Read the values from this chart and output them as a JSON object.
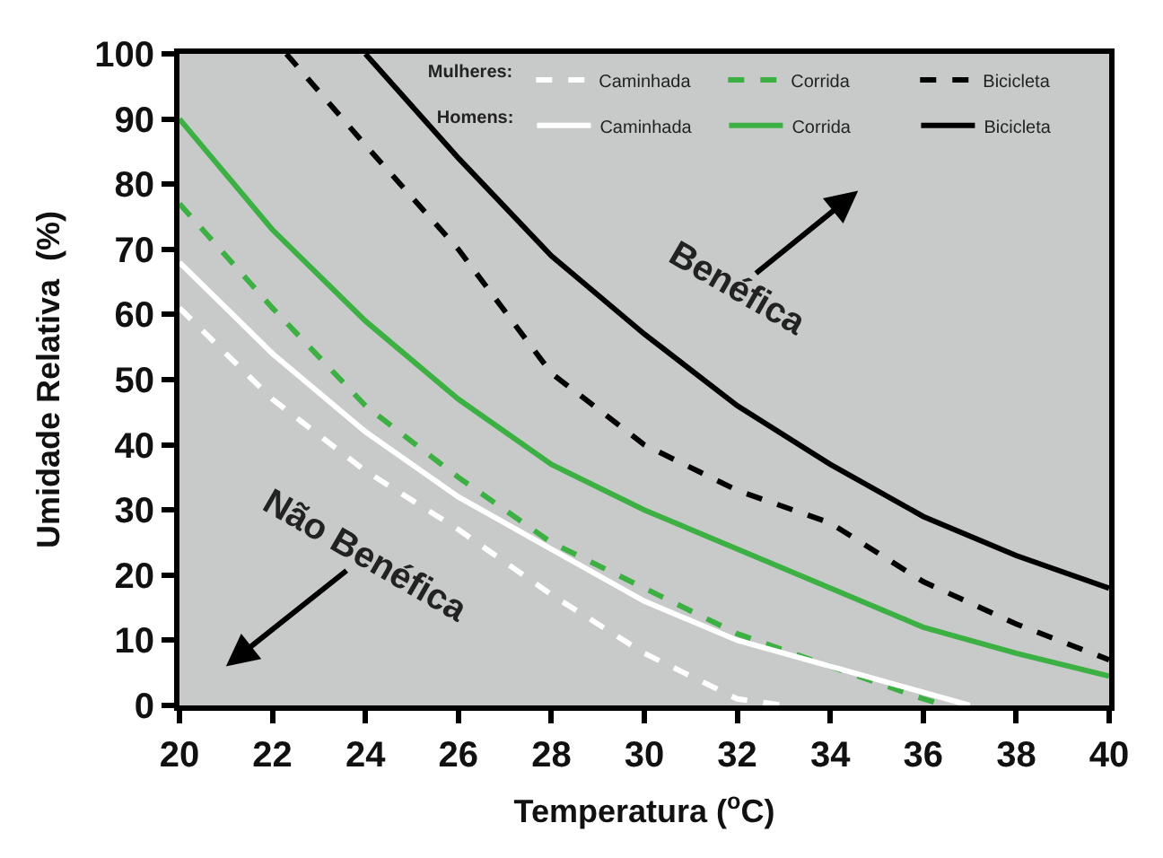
{
  "chart_data": {
    "type": "line",
    "xlabel": "Temperatura ($^{o}$C)",
    "ylabel": "Umidade Relativa  (%)",
    "xlim": [
      20,
      40
    ],
    "xticks": [
      20,
      22,
      24,
      26,
      28,
      30,
      32,
      34,
      36,
      38,
      40
    ],
    "ylim": [
      0,
      100
    ],
    "yticks": [
      0,
      10,
      20,
      30,
      40,
      50,
      60,
      70,
      80,
      90,
      100
    ],
    "grid": false,
    "legend": "top right",
    "marker": "none",
    "annotations": [
      "Mulheres:",
      "Homens:",
      "Benéfica",
      "Não Benéfica"
    ],
    "series": [
      {
        "name": "Caminhada",
        "color": "#ffffff",
        "line_style": "dashed",
        "x": [
          20,
          22,
          24,
          26,
          28,
          30,
          32,
          33
        ],
        "values": [
          61,
          47,
          36,
          27,
          17,
          8,
          1,
          0
        ]
      },
      {
        "name": "Corrida",
        "color": "#3cb043",
        "line_style": "dashed",
        "x": [
          20,
          22,
          24,
          26,
          28,
          30,
          32,
          34,
          36,
          36.5
        ],
        "values": [
          77,
          61,
          46,
          35,
          25,
          18,
          11,
          6,
          1,
          0
        ]
      },
      {
        "name": "Bicicleta",
        "color": "#000000",
        "line_style": "dashed",
        "x": [
          22.3,
          24,
          26,
          28,
          30,
          32,
          34,
          36,
          38,
          40
        ],
        "values": [
          100,
          86,
          70,
          51,
          40,
          33,
          28,
          19,
          12.5,
          7
        ]
      },
      {
        "name": "Caminhada",
        "color": "#ffffff",
        "line_style": "solid",
        "x": [
          20,
          22,
          24,
          26,
          28,
          30,
          32,
          34,
          36,
          37
        ],
        "values": [
          68,
          54,
          42,
          32,
          24,
          16,
          10,
          6,
          2,
          0
        ]
      },
      {
        "name": "Corrida",
        "color": "#3cb043",
        "line_style": "solid",
        "x": [
          20,
          22,
          24,
          26,
          28,
          30,
          32,
          34,
          36,
          38,
          40
        ],
        "values": [
          90,
          73,
          59,
          47,
          37,
          30,
          24,
          18,
          12,
          8,
          4.5
        ]
      },
      {
        "name": "Bicicleta",
        "color": "#000000",
        "line_style": "solid",
        "x": [
          24,
          26,
          28,
          30,
          32,
          34,
          36,
          38,
          40
        ],
        "values": [
          100,
          84,
          69,
          57,
          46,
          37,
          29,
          23,
          18
        ]
      }
    ]
  }
}
